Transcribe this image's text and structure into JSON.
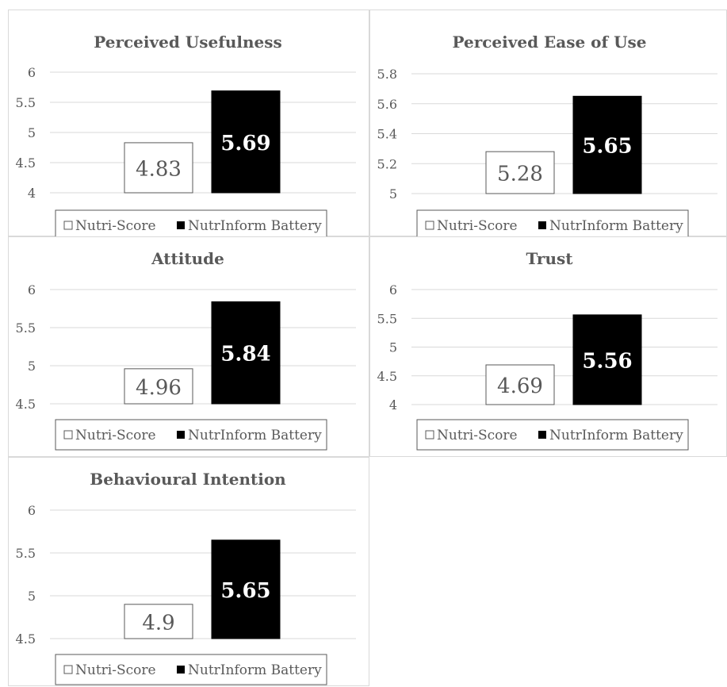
{
  "legend": {
    "series_a": "Nutri-Score",
    "series_b": "NutrInform Battery"
  },
  "colors": {
    "series_a": "#ffffff",
    "series_b": "#000000",
    "text": "#595959",
    "grid": "#d9d9d9"
  },
  "chart_data": [
    {
      "type": "bar",
      "title": "Perceived Usefulness",
      "categories": [
        "Nutri-Score",
        "NutrInform Battery"
      ],
      "values": [
        4.83,
        5.69
      ],
      "labels": [
        "4.83",
        "5.69"
      ],
      "ylim": [
        4,
        6
      ],
      "ticks": [
        "4",
        "4.5",
        "5",
        "5.5",
        "6"
      ],
      "tick_values": [
        4,
        4.5,
        5,
        5.5,
        6
      ],
      "grid": true,
      "legend": "bottom"
    },
    {
      "type": "bar",
      "title": "Perceived Ease of Use",
      "categories": [
        "Nutri-Score",
        "NutrInform Battery"
      ],
      "values": [
        5.28,
        5.65
      ],
      "labels": [
        "5.28",
        "5.65"
      ],
      "ylim": [
        5,
        5.8
      ],
      "ticks": [
        "5",
        "5.2",
        "5.4",
        "5.6",
        "5.8"
      ],
      "tick_values": [
        5,
        5.2,
        5.4,
        5.6,
        5.8
      ],
      "grid": true,
      "legend": "bottom"
    },
    {
      "type": "bar",
      "title": "Attitude",
      "categories": [
        "Nutri-Score",
        "NutrInform Battery"
      ],
      "values": [
        4.96,
        5.84
      ],
      "labels": [
        "4.96",
        "5.84"
      ],
      "ylim": [
        4.5,
        6
      ],
      "ticks": [
        "4.5",
        "5",
        "5.5",
        "6"
      ],
      "tick_values": [
        4.5,
        5,
        5.5,
        6
      ],
      "grid": true,
      "legend": "bottom"
    },
    {
      "type": "bar",
      "title": "Trust",
      "categories": [
        "Nutri-Score",
        "NutrInform Battery"
      ],
      "values": [
        4.69,
        5.56
      ],
      "labels": [
        "4.69",
        "5.56"
      ],
      "ylim": [
        4,
        6
      ],
      "ticks": [
        "4",
        "4.5",
        "5",
        "5.5",
        "6"
      ],
      "tick_values": [
        4,
        4.5,
        5,
        5.5,
        6
      ],
      "grid": true,
      "legend": "bottom"
    },
    {
      "type": "bar",
      "title": "Behavioural Intention",
      "categories": [
        "Nutri-Score",
        "NutrInform Battery"
      ],
      "values": [
        4.9,
        5.65
      ],
      "labels": [
        "4.9",
        "5.65"
      ],
      "ylim": [
        4.5,
        6
      ],
      "ticks": [
        "4.5",
        "5",
        "5.5",
        "6"
      ],
      "tick_values": [
        4.5,
        5,
        5.5,
        6
      ],
      "grid": true,
      "legend": "bottom"
    }
  ]
}
